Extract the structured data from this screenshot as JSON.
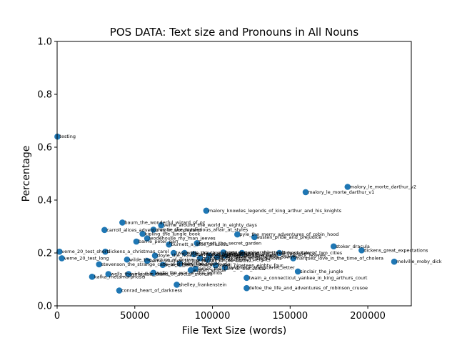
{
  "chart_data": {
    "type": "scatter",
    "title": "POS DATA: Text size and Pronouns in All Nouns",
    "xlabel": "File Text Size (words)",
    "ylabel": "Percentage",
    "xlim": [
      0,
      228000
    ],
    "ylim": [
      0,
      1.0
    ],
    "xticks": [
      0,
      50000,
      100000,
      150000,
      200000
    ],
    "xtick_labels": [
      "0",
      "50000",
      "100000",
      "150000",
      "200000"
    ],
    "yticks": [
      0.0,
      0.2,
      0.4,
      0.6,
      0.8,
      1.0
    ],
    "ytick_labels": [
      "0.0",
      "0.2",
      "0.4",
      "0.6",
      "0.8",
      "1.0"
    ],
    "grid": false,
    "marker_color": "#1f77b4",
    "points": [
      {
        "label": "testing",
        "x": 200,
        "y": 0.64
      },
      {
        "label": "melville_moby_dick",
        "x": 217000,
        "y": 0.167
      },
      {
        "label": "dickens_great_expectations",
        "x": 196000,
        "y": 0.21
      },
      {
        "label": "malory_le_morte_darthur_v2",
        "x": 187000,
        "y": 0.45
      },
      {
        "label": "malory_le_morte_darthur_v1",
        "x": 160000,
        "y": 0.43
      },
      {
        "label": "stoker_dracula",
        "x": 178000,
        "y": 0.225
      },
      {
        "label": "dickens_tale_of_two_cities",
        "x": 143000,
        "y": 0.2
      },
      {
        "label": "marquez_love_in_the_time_of_cholera",
        "x": 152000,
        "y": 0.18
      },
      {
        "label": "sinclair_the_jungle",
        "x": 155000,
        "y": 0.13
      },
      {
        "label": "twain_a_connecticut_yankee_in_king_arthurs_court",
        "x": 122000,
        "y": 0.106
      },
      {
        "label": "defoe_the_life_and_adventures_of_robinson_crusoe",
        "x": 122000,
        "y": 0.067
      },
      {
        "label": "austen_pride_and_prejudice",
        "x": 127000,
        "y": 0.26
      },
      {
        "label": "pyle_the_merry_adventures_of_robin_hood",
        "x": 116000,
        "y": 0.27
      },
      {
        "label": "malory_knowles_legends_of_king_arthur_and_his_knights",
        "x": 96000,
        "y": 0.36
      },
      {
        "label": "baum_the_wonderful_wizard_of_oz",
        "x": 42000,
        "y": 0.315
      },
      {
        "label": "verne_around_the_world_in_eighty_days",
        "x": 67000,
        "y": 0.305
      },
      {
        "label": "carroll_alices_adventures_in_wonderland",
        "x": 30500,
        "y": 0.287
      },
      {
        "label": "christie_the_mysterious_affair_at_styles",
        "x": 62000,
        "y": 0.288
      },
      {
        "label": "kipling_the_jungle_book",
        "x": 55000,
        "y": 0.272
      },
      {
        "label": "wodehouse_my_man_jeeves",
        "x": 58000,
        "y": 0.255
      },
      {
        "label": "barrie_peter_pan",
        "x": 51000,
        "y": 0.243
      },
      {
        "label": "burnett_a_little_princess",
        "x": 72000,
        "y": 0.232
      },
      {
        "label": "burnett_the_secret_garden",
        "x": 90000,
        "y": 0.237
      },
      {
        "label": "dickens_a_christmas_carol",
        "x": 31000,
        "y": 0.205
      },
      {
        "label": "twain_the_prince_and_the_pauper",
        "x": 75000,
        "y": 0.2
      },
      {
        "label": "doyle_the_hound_of_the_baskervilles",
        "x": 63000,
        "y": 0.19
      },
      {
        "label": "wells_the_time_machine",
        "x": 82000,
        "y": 0.2
      },
      {
        "label": "stevenson_treasure_island",
        "x": 88000,
        "y": 0.195
      },
      {
        "label": "london_the_call_of_the_wild",
        "x": 98000,
        "y": 0.19
      },
      {
        "label": "hugo_les_miserables_vol1",
        "x": 107000,
        "y": 0.202
      },
      {
        "label": "dumas_the_three_musketeers",
        "x": 119000,
        "y": 0.2
      },
      {
        "label": "doyle_the_adventures_of_sherlock_holmes",
        "x": 108000,
        "y": 0.19
      },
      {
        "label": "twain_adventures_of_tom_sawyer",
        "x": 103000,
        "y": 0.185
      },
      {
        "label": "bronte_wuthering_heights",
        "x": 97000,
        "y": 0.175
      },
      {
        "label": "grahame_the_wind_in_the_willows",
        "x": 92000,
        "y": 0.18
      },
      {
        "label": "lewis_the_monk",
        "x": 79000,
        "y": 0.16
      },
      {
        "label": "orwell_nineteen_eighty_four",
        "x": 102000,
        "y": 0.153
      },
      {
        "label": "hawthorne_the_scarlet_letter",
        "x": 108000,
        "y": 0.145
      },
      {
        "label": "sewell_black_beauty",
        "x": 68000,
        "y": 0.155
      },
      {
        "label": "stevenson_the_strange_case_of_dr_jekyll_and_mr_hyde",
        "x": 27000,
        "y": 0.157
      },
      {
        "label": "wilde_the_picture_of_dorian_gray",
        "x": 45000,
        "y": 0.175
      },
      {
        "label": "verne_journey_to_the_center_of_the_earth",
        "x": 58000,
        "y": 0.17
      },
      {
        "label": "verne_20_test_long",
        "x": 3000,
        "y": 0.18
      },
      {
        "label": "verne_20_test_short",
        "x": 1500,
        "y": 0.205
      },
      {
        "label": "wells_the_war_of_the_worlds",
        "x": 62000,
        "y": 0.125
      },
      {
        "label": "austen_emma",
        "x": 86000,
        "y": 0.135
      },
      {
        "label": "james_the_turn_of_the_screw",
        "x": 89000,
        "y": 0.14
      },
      {
        "label": "wells_the_invisible_man",
        "x": 33000,
        "y": 0.12
      },
      {
        "label": "wells_the_island_of_doctor_moreau",
        "x": 46000,
        "y": 0.12
      },
      {
        "label": "kafka_metamorphosis",
        "x": 22500,
        "y": 0.11
      },
      {
        "label": "shelley_frankenstein",
        "x": 77000,
        "y": 0.08
      },
      {
        "label": "conrad_heart_of_darkness",
        "x": 40000,
        "y": 0.058
      }
    ]
  }
}
